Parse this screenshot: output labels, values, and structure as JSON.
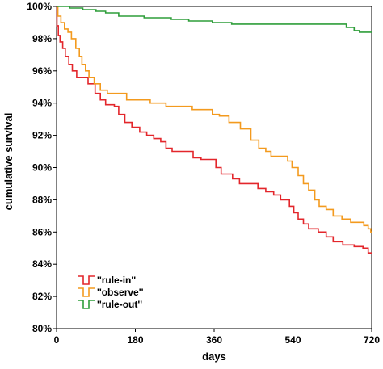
{
  "chart_data": {
    "type": "line",
    "step": true,
    "title": "",
    "xlabel": "days",
    "ylabel": "cumulative survival",
    "xlim": [
      0,
      720
    ],
    "ylim": [
      80,
      100
    ],
    "x_ticks": [
      "0",
      "180",
      "360",
      "540",
      "720"
    ],
    "y_ticks": [
      "80%",
      "82%",
      "84%",
      "86%",
      "88%",
      "90%",
      "92%",
      "94%",
      "96%",
      "98%",
      "100%"
    ],
    "legend_position": "bottom-left",
    "grid": false,
    "series": [
      {
        "name": "''rule-in''",
        "color": "#e3262b",
        "points": [
          [
            0,
            100
          ],
          [
            1,
            98.8
          ],
          [
            4,
            98.2
          ],
          [
            8,
            97.8
          ],
          [
            14,
            97.4
          ],
          [
            20,
            96.9
          ],
          [
            28,
            96.4
          ],
          [
            36,
            96.0
          ],
          [
            46,
            95.6
          ],
          [
            66,
            95.6
          ],
          [
            72,
            95.2
          ],
          [
            88,
            94.6
          ],
          [
            100,
            94.2
          ],
          [
            112,
            93.9
          ],
          [
            132,
            93.8
          ],
          [
            142,
            93.3
          ],
          [
            156,
            92.8
          ],
          [
            172,
            92.5
          ],
          [
            190,
            92.2
          ],
          [
            206,
            92.0
          ],
          [
            222,
            91.8
          ],
          [
            238,
            91.6
          ],
          [
            250,
            91.2
          ],
          [
            264,
            91.0
          ],
          [
            300,
            91.0
          ],
          [
            312,
            90.6
          ],
          [
            330,
            90.5
          ],
          [
            356,
            90.5
          ],
          [
            364,
            90.0
          ],
          [
            376,
            89.6
          ],
          [
            402,
            89.3
          ],
          [
            418,
            89.0
          ],
          [
            452,
            89.0
          ],
          [
            460,
            88.7
          ],
          [
            478,
            88.5
          ],
          [
            496,
            88.3
          ],
          [
            512,
            88.0
          ],
          [
            532,
            87.6
          ],
          [
            542,
            87.2
          ],
          [
            552,
            86.8
          ],
          [
            564,
            86.5
          ],
          [
            576,
            86.2
          ],
          [
            598,
            86.0
          ],
          [
            616,
            85.7
          ],
          [
            632,
            85.4
          ],
          [
            654,
            85.2
          ],
          [
            680,
            85.1
          ],
          [
            700,
            85.0
          ],
          [
            712,
            84.7
          ],
          [
            720,
            84.7
          ]
        ]
      },
      {
        "name": "''observe''",
        "color": "#f39a1e",
        "points": [
          [
            0,
            100
          ],
          [
            3,
            99.4
          ],
          [
            10,
            99.0
          ],
          [
            18,
            98.6
          ],
          [
            26,
            98.4
          ],
          [
            34,
            98.0
          ],
          [
            44,
            97.4
          ],
          [
            52,
            96.9
          ],
          [
            58,
            96.4
          ],
          [
            66,
            96.0
          ],
          [
            74,
            95.6
          ],
          [
            86,
            95.2
          ],
          [
            100,
            94.8
          ],
          [
            116,
            94.6
          ],
          [
            152,
            94.6
          ],
          [
            160,
            94.2
          ],
          [
            190,
            94.2
          ],
          [
            214,
            94.0
          ],
          [
            236,
            94.0
          ],
          [
            250,
            93.8
          ],
          [
            290,
            93.8
          ],
          [
            310,
            93.6
          ],
          [
            346,
            93.6
          ],
          [
            356,
            93.3
          ],
          [
            372,
            93.2
          ],
          [
            394,
            92.8
          ],
          [
            420,
            92.4
          ],
          [
            444,
            91.7
          ],
          [
            462,
            91.2
          ],
          [
            478,
            91.0
          ],
          [
            490,
            90.7
          ],
          [
            516,
            90.7
          ],
          [
            528,
            90.4
          ],
          [
            538,
            90.0
          ],
          [
            552,
            89.5
          ],
          [
            564,
            89.0
          ],
          [
            576,
            88.6
          ],
          [
            590,
            88.0
          ],
          [
            600,
            87.6
          ],
          [
            616,
            87.4
          ],
          [
            632,
            87.0
          ],
          [
            652,
            86.8
          ],
          [
            672,
            86.6
          ],
          [
            692,
            86.6
          ],
          [
            702,
            86.4
          ],
          [
            712,
            86.2
          ],
          [
            718,
            86.0
          ],
          [
            720,
            86.0
          ]
        ]
      },
      {
        "name": "''rule-out''",
        "color": "#2e9e3a",
        "points": [
          [
            0,
            100
          ],
          [
            30,
            99.9
          ],
          [
            60,
            99.8
          ],
          [
            90,
            99.7
          ],
          [
            112,
            99.6
          ],
          [
            142,
            99.4
          ],
          [
            200,
            99.3
          ],
          [
            262,
            99.2
          ],
          [
            302,
            99.1
          ],
          [
            356,
            99.0
          ],
          [
            400,
            98.9
          ],
          [
            460,
            98.9
          ],
          [
            500,
            98.9
          ],
          [
            580,
            98.9
          ],
          [
            640,
            98.9
          ],
          [
            662,
            98.7
          ],
          [
            680,
            98.5
          ],
          [
            692,
            98.4
          ],
          [
            720,
            98.4
          ]
        ]
      }
    ]
  }
}
